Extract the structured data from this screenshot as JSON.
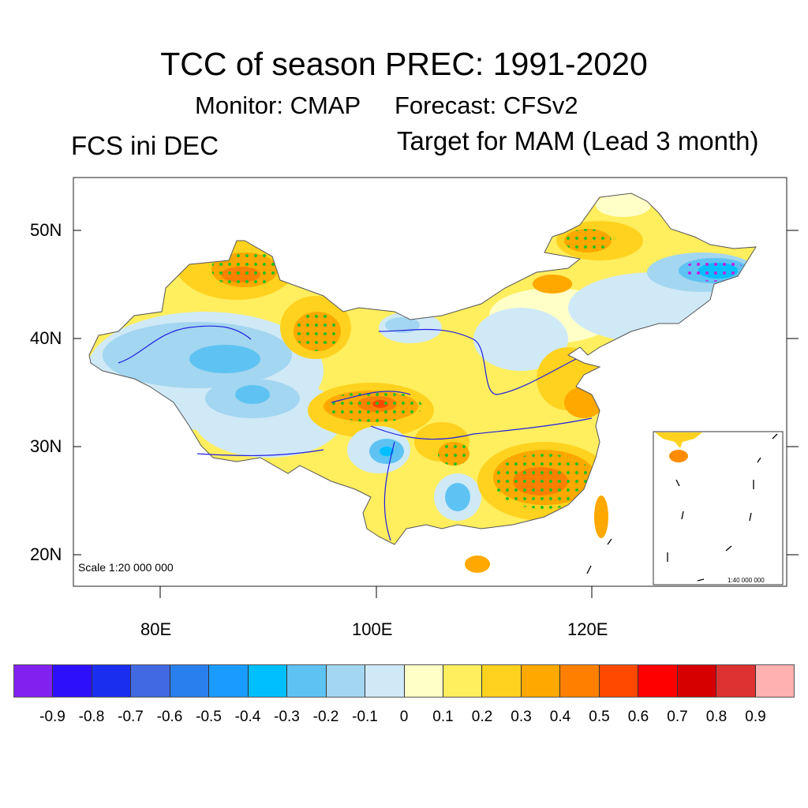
{
  "title": "TCC of season PREC: 1991-2020",
  "subtitle_monitor": "Monitor: CMAP",
  "subtitle_forecast": "Forecast: CFSv2",
  "left_label": "FCS ini DEC",
  "right_label": "Target for MAM (Lead 3 month)",
  "lat_labels": [
    "50N",
    "40N",
    "30N",
    "20N"
  ],
  "lon_labels": [
    "80E",
    "100E",
    "120E"
  ],
  "scale_main": "Scale 1:20 000 000",
  "scale_inset": "1:40 000 000",
  "colorbar": {
    "colors": [
      "#8220f0",
      "#2d0ffa",
      "#1a2ef0",
      "#4169e1",
      "#2a7fee",
      "#1a9bff",
      "#00bfff",
      "#5ec3f2",
      "#a3d6f0",
      "#cfe9f7",
      "#ffffc8",
      "#ffee5e",
      "#ffd21f",
      "#ffa800",
      "#ff8000",
      "#ff4800",
      "#ff0000",
      "#d70000",
      "#dc3232",
      "#ffb0b0"
    ],
    "labels": [
      "-0.9",
      "-0.8",
      "-0.7",
      "-0.6",
      "-0.5",
      "-0.4",
      "-0.3",
      "-0.2",
      "-0.1",
      "0",
      "0.1",
      "0.2",
      "0.3",
      "0.4",
      "0.5",
      "0.6",
      "0.7",
      "0.8",
      "0.9"
    ]
  }
}
